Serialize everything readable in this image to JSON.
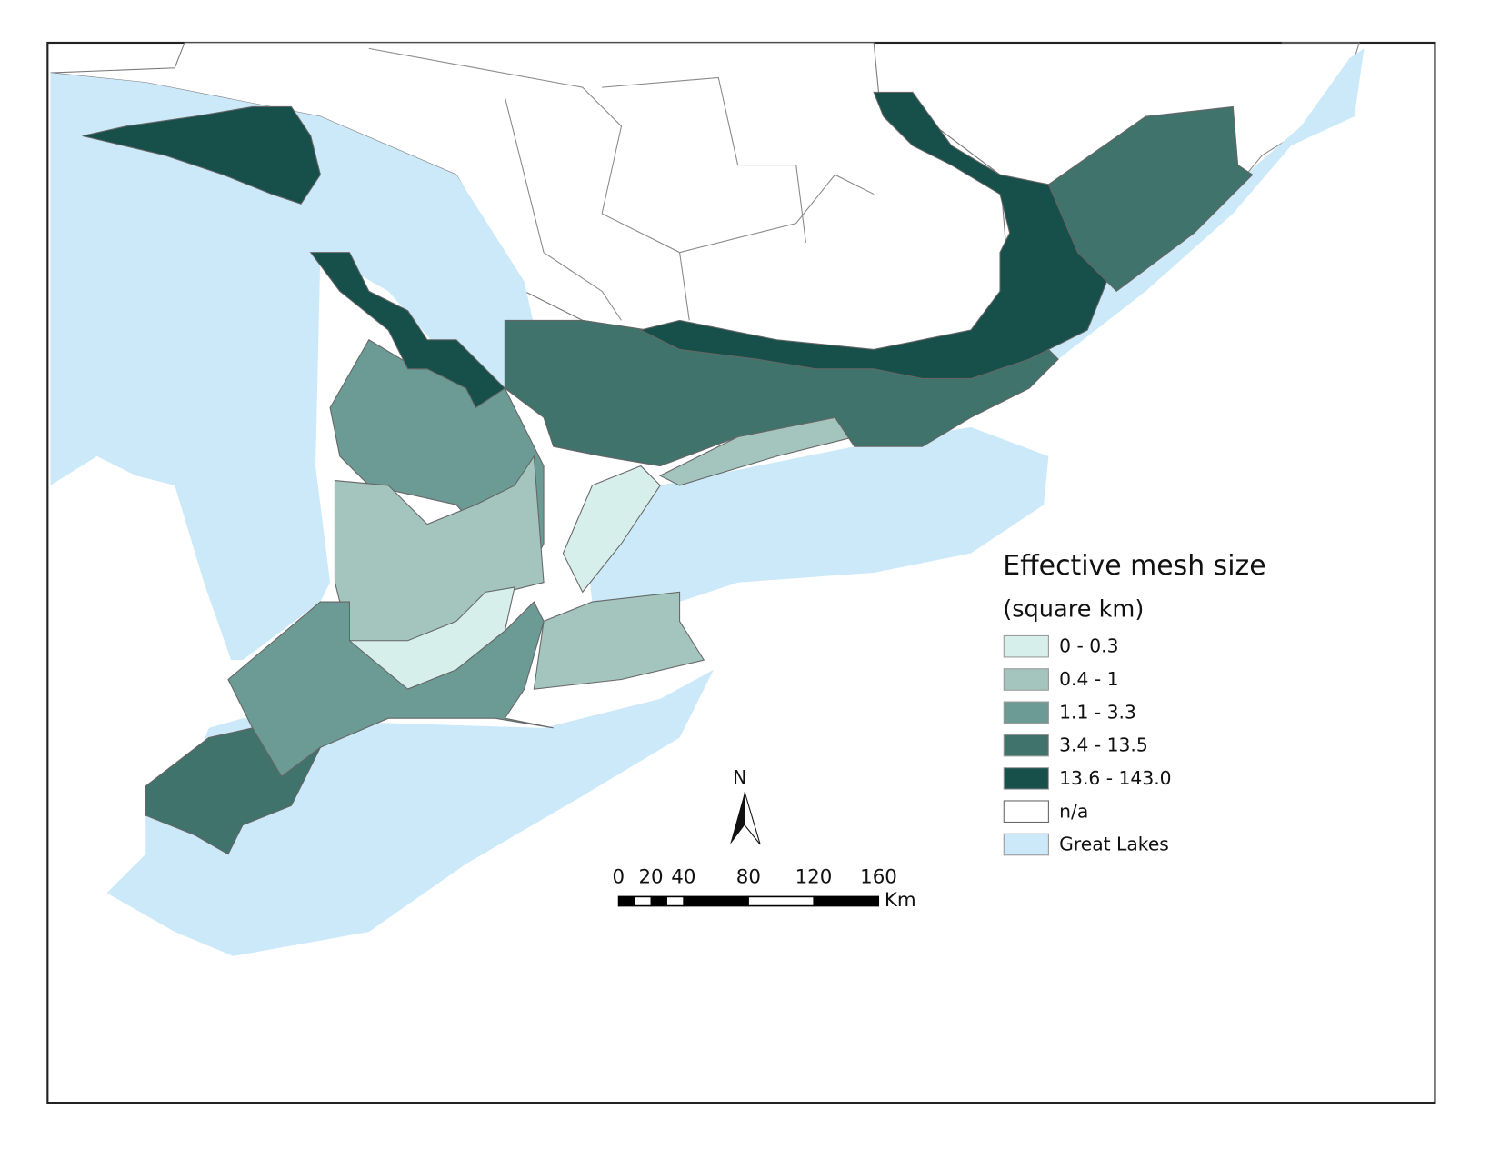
{
  "legend": {
    "title": "Effective mesh size",
    "subtitle": "(square km)",
    "items": [
      {
        "label": "0 - 0.3",
        "color": "#d6efea"
      },
      {
        "label": "0.4 - 1",
        "color": "#a3c5bd"
      },
      {
        "label": "1.1 - 3.3",
        "color": "#6b9b94"
      },
      {
        "label": "3.4 - 13.5",
        "color": "#40736c"
      },
      {
        "label": "13.6 - 143.0",
        "color": "#174f4a"
      },
      {
        "label": "n/a",
        "color": "#ffffff"
      },
      {
        "label": "Great Lakes",
        "color": "#cce9fa"
      }
    ]
  },
  "north_arrow": {
    "label": "N"
  },
  "scale_bar": {
    "ticks": [
      0,
      20,
      40,
      80,
      120,
      160
    ],
    "unit": "Km"
  }
}
